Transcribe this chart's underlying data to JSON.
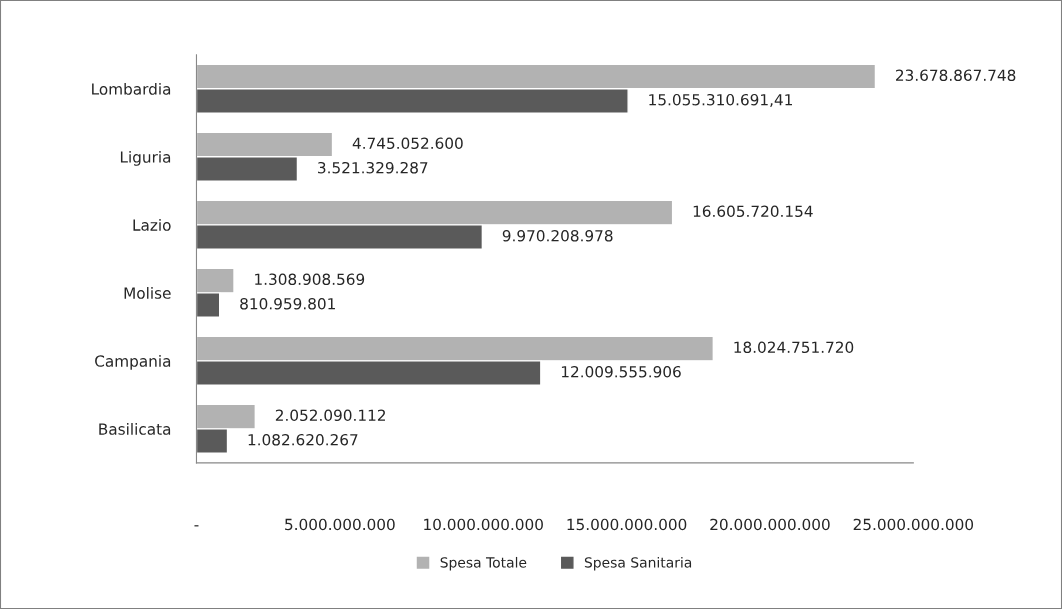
{
  "chart_data": {
    "type": "bar",
    "orientation": "horizontal",
    "categories": [
      "Lombardia",
      "Liguria",
      "Lazio",
      "Molise",
      "Campania",
      "Basilicata"
    ],
    "series": [
      {
        "name": "Spesa Totale",
        "color": "#b2b2b2",
        "values": [
          23678867748,
          4745052600,
          16605720154,
          1308908569,
          18024751720,
          2052090112
        ],
        "value_labels": [
          "23.678.867.748",
          "4.745.052.600",
          "16.605.720.154",
          "1.308.908.569",
          "18.024.751.720",
          "2.052.090.112"
        ]
      },
      {
        "name": "Spesa Sanitaria",
        "color": "#5a5a5a",
        "values": [
          15055310691.41,
          3521329287,
          9970208978,
          810959801,
          12009555906,
          1082620267
        ],
        "value_labels": [
          "15.055.310.691,41",
          "3.521.329.287",
          "9.970.208.978",
          "810.959.801",
          "12.009.555.906",
          "1.082.620.267"
        ]
      }
    ],
    "xlim": [
      0,
      25000000000
    ],
    "xticks": [
      {
        "value": 0,
        "label": "-"
      },
      {
        "value": 5000000000,
        "label": "5.000.000.000"
      },
      {
        "value": 10000000000,
        "label": "10.000.000.000"
      },
      {
        "value": 15000000000,
        "label": "15.000.000.000"
      },
      {
        "value": 20000000000,
        "label": "20.000.000.000"
      },
      {
        "value": 25000000000,
        "label": "25.000.000.000"
      }
    ],
    "grid": false,
    "legend": "bottom"
  }
}
